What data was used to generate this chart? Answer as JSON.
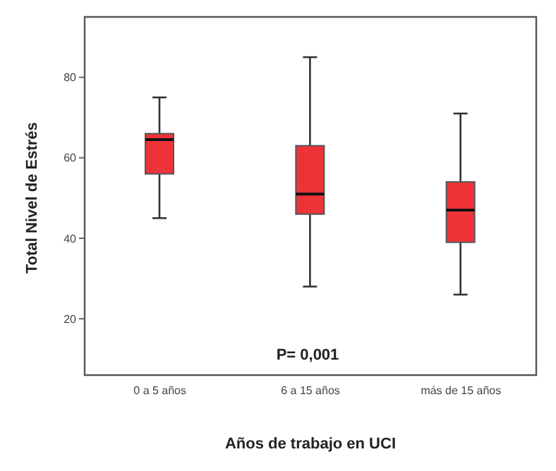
{
  "chart_data": {
    "type": "box",
    "xlabel": "Años de trabajo en UCI",
    "ylabel": "Total Nivel de Estrés",
    "categories": [
      "0 a 5 años",
      "6 a 15 años",
      "más de 15 años"
    ],
    "color": "#ee3338",
    "ylim": [
      6,
      95
    ],
    "yticks": [
      20,
      40,
      60,
      80
    ],
    "grid": false,
    "annotations": [
      "P= 0,001"
    ],
    "boxes": [
      {
        "low": 45,
        "q1": 56,
        "median": 64.5,
        "q3": 66,
        "high": 75
      },
      {
        "low": 28,
        "q1": 46,
        "median": 51,
        "q3": 63,
        "high": 85
      },
      {
        "low": 26,
        "q1": 39,
        "median": 47,
        "q3": 54,
        "high": 71
      }
    ]
  }
}
